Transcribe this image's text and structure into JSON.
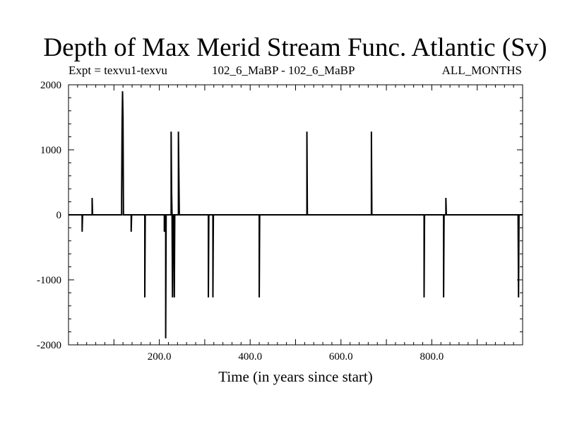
{
  "chart_data": {
    "type": "line",
    "title": "Depth of Max Merid Stream Func. Atlantic (Sv)",
    "subtitle_left": "Expt = texvu1-texvu",
    "subtitle_center": "102_6_MaBP - 102_6_MaBP",
    "subtitle_right": "ALL_MONTHS",
    "xlabel": "Time (in years since start)",
    "ylabel": "",
    "xlim": [
      0,
      1000
    ],
    "ylim": [
      -2000,
      2000
    ],
    "x_ticks": [
      200,
      400,
      600,
      800
    ],
    "x_tick_labels": [
      "200.0",
      "400.0",
      "600.0",
      "800.0"
    ],
    "y_ticks": [
      -2000,
      -1000,
      0,
      1000,
      2000
    ],
    "y_tick_labels": [
      "-2000",
      "-1000",
      "0",
      "1000",
      "2000"
    ],
    "grid": false,
    "series": [
      {
        "name": "texvu1-texvu",
        "color": "#000000",
        "x": [
          0,
          30,
          30,
          31,
          52,
          52,
          53,
          117,
          117,
          118,
          119,
          120,
          121,
          138,
          138,
          139,
          168,
          168,
          169,
          211,
          211,
          212,
          214,
          214,
          215,
          226,
          226,
          227,
          228,
          229,
          230,
          232,
          233,
          234,
          235,
          242,
          242,
          244,
          245,
          308,
          308,
          309,
          318,
          318,
          319,
          420,
          420,
          421,
          422,
          525,
          525,
          526,
          667,
          667,
          668,
          669,
          783,
          783,
          784,
          785,
          826,
          826,
          827,
          828,
          829,
          831,
          831,
          832,
          977,
          990,
          991,
          992,
          993,
          1000
        ],
        "y": [
          0,
          0,
          -260,
          0,
          0,
          260,
          0,
          0,
          260,
          1380,
          1900,
          1500,
          0,
          0,
          -260,
          0,
          0,
          -1270,
          0,
          0,
          -260,
          0,
          0,
          -1900,
          0,
          0,
          1280,
          350,
          0,
          -1270,
          0,
          0,
          -1270,
          0,
          0,
          0,
          1280,
          0,
          0,
          0,
          -1270,
          0,
          0,
          -1270,
          0,
          0,
          -1270,
          0,
          0,
          0,
          1280,
          0,
          0,
          1280,
          0,
          0,
          0,
          -1270,
          0,
          0,
          0,
          -1270,
          0,
          0,
          0,
          0,
          260,
          0,
          0,
          0,
          -1270,
          0,
          0,
          0
        ]
      }
    ]
  }
}
